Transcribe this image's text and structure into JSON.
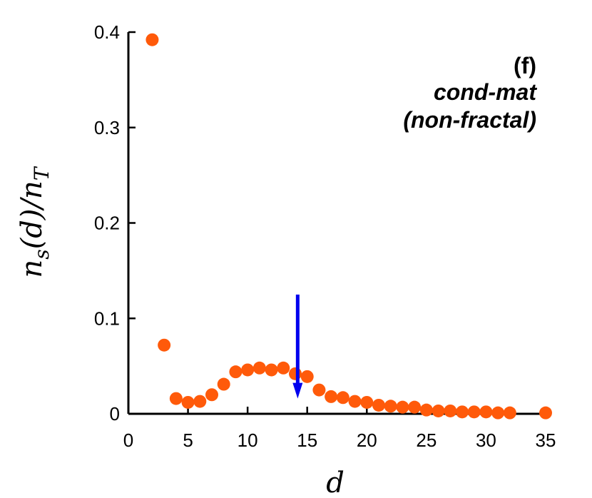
{
  "chart_data": {
    "type": "scatter",
    "panel_label": "(f)",
    "annotation_line1": "cond-mat",
    "annotation_line2": "(non-fractal)",
    "xlabel": "d",
    "ylabel_parts": {
      "n": "n",
      "sub_s": "s",
      "middle": "(d)/n",
      "sub_T": "T"
    },
    "xlim": [
      0,
      35
    ],
    "ylim": [
      0,
      0.4
    ],
    "xticks": [
      0,
      5,
      10,
      15,
      20,
      25,
      30,
      35
    ],
    "xtick_labels": [
      "0",
      "5",
      "10",
      "15",
      "20",
      "25",
      "30",
      "35"
    ],
    "yticks": [
      0,
      0.1,
      0.2,
      0.3,
      0.4
    ],
    "ytick_labels": [
      "0",
      "0.1",
      "0.2",
      "0.3",
      "0.4"
    ],
    "points_color": "#ff5a0a",
    "arrow_color": "#0000ee",
    "arrow": {
      "x": 14.2,
      "y_from": 0.125,
      "y_to": 0.016
    },
    "points": [
      {
        "x": 2,
        "y": 0.392
      },
      {
        "x": 3,
        "y": 0.072
      },
      {
        "x": 4,
        "y": 0.016
      },
      {
        "x": 5,
        "y": 0.012
      },
      {
        "x": 6,
        "y": 0.013
      },
      {
        "x": 7,
        "y": 0.02
      },
      {
        "x": 8,
        "y": 0.031
      },
      {
        "x": 9,
        "y": 0.044
      },
      {
        "x": 10,
        "y": 0.046
      },
      {
        "x": 11,
        "y": 0.048
      },
      {
        "x": 12,
        "y": 0.046
      },
      {
        "x": 13,
        "y": 0.048
      },
      {
        "x": 14,
        "y": 0.042
      },
      {
        "x": 15,
        "y": 0.039
      },
      {
        "x": 16,
        "y": 0.025
      },
      {
        "x": 17,
        "y": 0.018
      },
      {
        "x": 18,
        "y": 0.017
      },
      {
        "x": 19,
        "y": 0.013
      },
      {
        "x": 20,
        "y": 0.012
      },
      {
        "x": 21,
        "y": 0.009
      },
      {
        "x": 22,
        "y": 0.008
      },
      {
        "x": 23,
        "y": 0.007
      },
      {
        "x": 24,
        "y": 0.007
      },
      {
        "x": 25,
        "y": 0.004
      },
      {
        "x": 26,
        "y": 0.003
      },
      {
        "x": 27,
        "y": 0.003
      },
      {
        "x": 28,
        "y": 0.002
      },
      {
        "x": 29,
        "y": 0.002
      },
      {
        "x": 30,
        "y": 0.002
      },
      {
        "x": 31,
        "y": 0.001
      },
      {
        "x": 32,
        "y": 0.001
      },
      {
        "x": 35,
        "y": 0.001
      }
    ]
  }
}
